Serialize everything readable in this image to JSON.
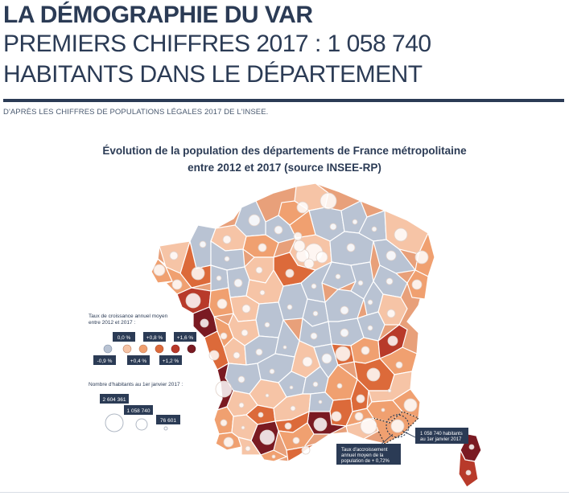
{
  "header": {
    "title_bold": "LA DÉMOGRAPHIE DU VAR",
    "title_line2": "PREMIERS CHIFFRES 2017 : 1 058 740",
    "title_line3": "HABITANTS DANS LE DÉPARTEMENT",
    "source": "D'APRÈS LES CHIFFRES DE POPULATIONS LÉGALES 2017 DE L'INSEE."
  },
  "map": {
    "title_line1": "Évolution de la population des départements de  France métropolitaine",
    "title_line2": "entre 2012 et 2017 (source INSEE-RP)",
    "colors": {
      "c1": "#b9c3d3",
      "c2": "#f6c4a6",
      "c3": "#f0a070",
      "c4": "#dc6a3a",
      "c5": "#b83a2a",
      "c6": "#7a1a22",
      "border": "#ffffff",
      "bubble": "#ffffff"
    },
    "legend_growth": {
      "title": "Taux de croissance annuel moyen entre 2012 et 2017 :",
      "labels_top": [
        "0,0 %",
        "+0,8 %",
        "+1,6 %"
      ],
      "labels_bottom": [
        "-0,9 %",
        "+0,4 %",
        "+1,2 %"
      ]
    },
    "legend_pop": {
      "title": "Nombre d'habitants au 1er janvier 2017 :",
      "values": [
        "2 604 361",
        "1 058 740",
        "76 601"
      ]
    },
    "callouts": {
      "var_pop": "1 058 740 habitants au 1er janvier 2017",
      "var_rate": "Taux d'accroissement annuel moyen de la population de + 0,72%"
    }
  }
}
